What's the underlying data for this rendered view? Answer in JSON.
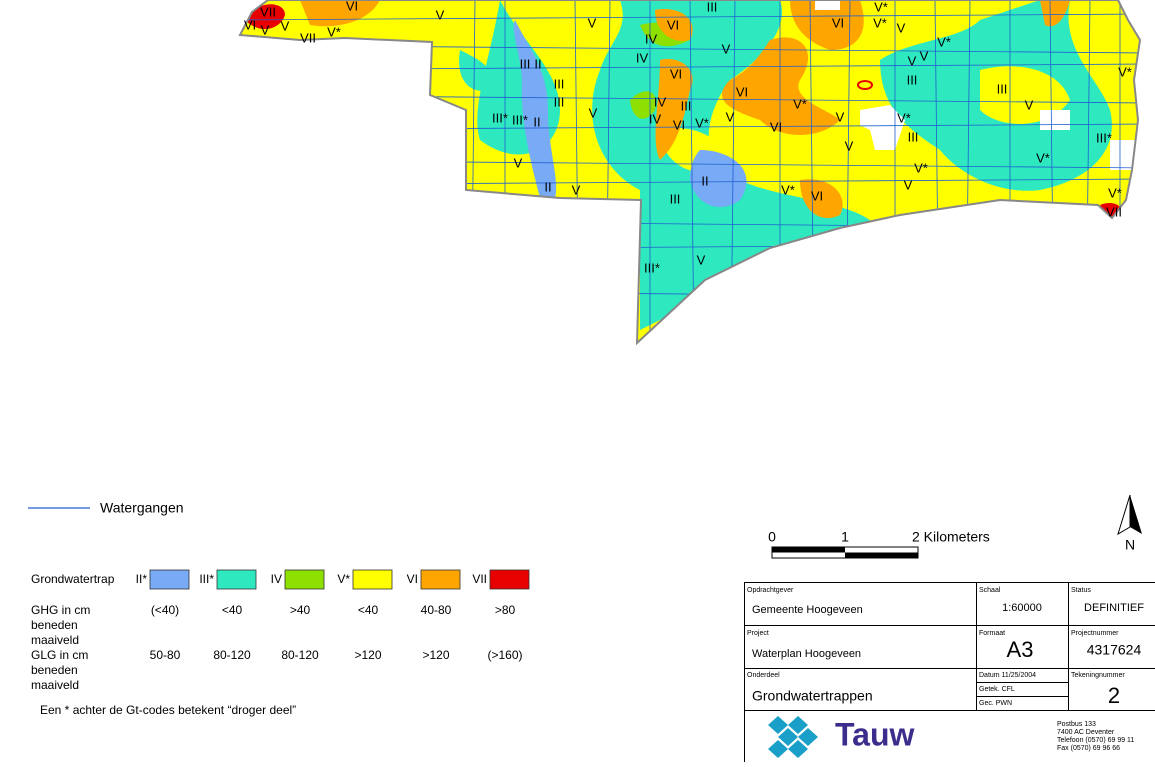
{
  "map": {
    "labels": [
      "VII",
      "VI",
      "VI",
      "V",
      "V",
      "VII",
      "V*",
      "V",
      "V",
      "III",
      "VI",
      "IV",
      "V",
      "VI",
      "V*",
      "V*",
      "V",
      "V*",
      "V",
      "V",
      "III",
      "II",
      "IV",
      "VI",
      "III",
      "III",
      "V*",
      "III",
      "III",
      "VI",
      "IV",
      "III",
      "V*",
      "V",
      "V",
      "III*",
      "III*",
      "II",
      "IV",
      "VI",
      "V*",
      "V",
      "VI",
      "V",
      "V*",
      "III",
      "III*",
      "V",
      "V*",
      "V",
      "V*",
      "II",
      "V",
      "II",
      "V",
      "V*",
      "VI",
      "V*",
      "III",
      "VII",
      "V",
      "III*"
    ]
  },
  "legend": {
    "watercourse": {
      "label": "Watergangen",
      "color": "#1f5fd0"
    },
    "classes_title": "Grondwatertrap",
    "classes": [
      {
        "code": "II*",
        "color": "#78aaf5"
      },
      {
        "code": "III*",
        "color": "#2ee8c0"
      },
      {
        "code": "IV",
        "color": "#8ee000"
      },
      {
        "code": "V*",
        "color": "#ffff00"
      },
      {
        "code": "VI",
        "color": "#ffa500"
      },
      {
        "code": "VII",
        "color": "#e80000"
      }
    ],
    "ghg": {
      "label": [
        "GHG in cm",
        "beneden",
        "maaiveld"
      ],
      "values": [
        "(<40)",
        "<40",
        ">40",
        "<40",
        "40-80",
        ">80"
      ]
    },
    "glg": {
      "label": [
        "GLG in cm",
        "beneden",
        "maaiveld"
      ],
      "values": [
        "50-80",
        "80-120",
        "80-120",
        ">120",
        ">120",
        "(>160)"
      ]
    },
    "note": "Een * achter de Gt-codes betekent “droger deel”"
  },
  "scale_bar": {
    "ticks": [
      "0",
      "1",
      "2 Kilometers"
    ]
  },
  "north_arrow": "N",
  "title_block": {
    "client": {
      "label": "Opdrachtgever",
      "value": "Gemeente Hoogeveen"
    },
    "scale": {
      "label": "Schaal",
      "value": "1:60000"
    },
    "status": {
      "label": "Status",
      "value": "DEFINITIEF"
    },
    "project": {
      "label": "Project",
      "value": "Waterplan Hoogeveen"
    },
    "format": {
      "label": "Formaat",
      "value": "A3"
    },
    "project_number": {
      "label": "Projectnummer",
      "value": "4317624"
    },
    "part": {
      "label": "Onderdeel",
      "value": "Grondwatertrappen"
    },
    "date": "Datum 11/25/2004",
    "drawn": "Getek.   CFL",
    "checked": "Gec.     PWN",
    "drawing_number": {
      "label": "Tekeningnummer",
      "value": "2"
    },
    "company": "Tauw",
    "address": [
      "Postbus 133",
      "7400 AC Deventer",
      "Telefoon (0570) 69 99 11",
      "Fax (0570) 69 96 66"
    ]
  }
}
